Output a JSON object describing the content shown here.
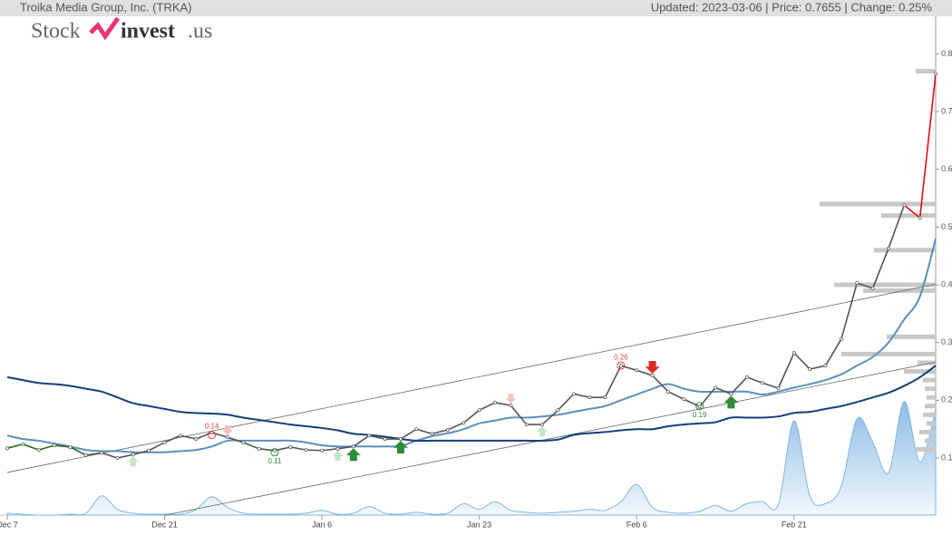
{
  "header": {
    "title": "Troika Media Group, Inc. (TRKA)",
    "status": "Updated: 2023-03-06 | Price: 0.7655 | Change: 0.25%"
  },
  "logo": {
    "part1": "Stock",
    "part2": "invest",
    "part3": ".us"
  },
  "chart_data": {
    "type": "line",
    "categories": [
      "Dec 7",
      null,
      null,
      null,
      null,
      null,
      null,
      null,
      null,
      null,
      "Dec 21",
      null,
      null,
      null,
      null,
      null,
      null,
      null,
      null,
      null,
      "Jan 6",
      null,
      null,
      null,
      null,
      null,
      null,
      null,
      null,
      null,
      "Jan 23",
      null,
      null,
      null,
      null,
      null,
      null,
      null,
      null,
      null,
      "Feb 6",
      null,
      null,
      null,
      null,
      null,
      null,
      null,
      null,
      null,
      "Feb 21",
      null,
      null,
      null,
      null,
      null,
      null,
      null,
      null,
      null
    ],
    "ylim": [
      0,
      0.865
    ],
    "yticks": [
      0.1,
      0.2,
      0.3,
      0.4,
      0.5,
      0.6,
      0.7,
      0.8
    ],
    "price": {
      "values": [
        0.117,
        0.124,
        0.114,
        0.122,
        0.119,
        0.105,
        0.109,
        0.1,
        0.106,
        0.113,
        0.127,
        0.139,
        0.133,
        0.144,
        0.136,
        0.127,
        0.116,
        0.113,
        0.119,
        0.114,
        0.113,
        0.116,
        0.12,
        0.139,
        0.133,
        0.133,
        0.15,
        0.142,
        0.149,
        0.161,
        0.183,
        0.196,
        0.191,
        0.158,
        0.158,
        0.183,
        0.211,
        0.205,
        0.205,
        0.26,
        0.252,
        0.243,
        0.215,
        0.202,
        0.189,
        0.222,
        0.211,
        0.24,
        0.23,
        0.221,
        0.282,
        0.254,
        0.26,
        0.306,
        0.403,
        0.394,
        0.463,
        0.538,
        0.516,
        0.7655
      ],
      "color_ranges": [
        {
          "from": 0,
          "to": 5,
          "color": "#2d6a1e"
        },
        {
          "from": 5,
          "to": 57,
          "color": "#555555"
        },
        {
          "from": 57,
          "to": 59,
          "color": "#e01010"
        }
      ]
    },
    "series": [
      {
        "color": "#5b8fc0",
        "values": [
          0.139,
          0.133,
          0.13,
          0.125,
          0.12,
          0.114,
          0.112,
          0.112,
          0.11,
          0.11,
          0.11,
          0.112,
          0.114,
          0.12,
          0.13,
          0.13,
          0.13,
          0.13,
          0.13,
          0.127,
          0.122,
          0.12,
          0.12,
          0.12,
          0.12,
          0.121,
          0.13,
          0.138,
          0.143,
          0.15,
          0.16,
          0.165,
          0.17,
          0.17,
          0.172,
          0.175,
          0.18,
          0.185,
          0.19,
          0.2,
          0.21,
          0.22,
          0.228,
          0.22,
          0.215,
          0.215,
          0.215,
          0.215,
          0.21,
          0.215,
          0.222,
          0.228,
          0.235,
          0.245,
          0.26,
          0.275,
          0.3,
          0.34,
          0.38,
          0.48
        ]
      },
      {
        "color": "#123f7a",
        "values": [
          0.24,
          0.235,
          0.23,
          0.228,
          0.225,
          0.22,
          0.215,
          0.205,
          0.195,
          0.19,
          0.185,
          0.18,
          0.178,
          0.177,
          0.175,
          0.17,
          0.166,
          0.162,
          0.158,
          0.155,
          0.152,
          0.148,
          0.142,
          0.14,
          0.137,
          0.133,
          0.13,
          0.13,
          0.13,
          0.13,
          0.13,
          0.13,
          0.13,
          0.13,
          0.13,
          0.132,
          0.14,
          0.143,
          0.145,
          0.148,
          0.15,
          0.15,
          0.155,
          0.158,
          0.16,
          0.162,
          0.17,
          0.17,
          0.17,
          0.172,
          0.178,
          0.18,
          0.185,
          0.19,
          0.197,
          0.205,
          0.213,
          0.225,
          0.24,
          0.26
        ]
      }
    ],
    "volume": {
      "color": "#7fb5e3",
      "y3lim": [
        0,
        130
      ],
      "values": [
        2,
        1,
        0,
        0,
        1,
        2,
        20,
        6,
        2,
        1,
        1,
        1,
        6,
        19,
        8,
        2,
        1,
        1,
        1,
        2,
        5,
        1,
        2,
        9,
        2,
        1,
        3,
        1,
        2,
        12,
        6,
        14,
        5,
        3,
        2,
        3,
        4,
        6,
        5,
        14,
        32,
        8,
        3,
        2,
        4,
        10,
        4,
        12,
        14,
        11,
        98,
        20,
        12,
        30,
        100,
        76,
        44,
        118,
        55,
        110
      ]
    },
    "trend_lines": [
      {
        "from": [
          0,
          0.075
        ],
        "to": [
          59,
          0.401
        ]
      },
      {
        "from": [
          10,
          0.001
        ],
        "to": [
          59,
          0.266
        ]
      }
    ],
    "signals": [
      {
        "index": 8,
        "kind": "buy",
        "strong": false
      },
      {
        "index": 21,
        "kind": "buy",
        "strong": false
      },
      {
        "index": 22,
        "kind": "buy",
        "strong": true
      },
      {
        "index": 25,
        "kind": "buy",
        "strong": true
      },
      {
        "index": 34,
        "kind": "buy",
        "strong": false
      },
      {
        "index": 46,
        "kind": "buy",
        "strong": true
      },
      {
        "index": 14,
        "kind": "sell",
        "strong": false
      },
      {
        "index": 32,
        "kind": "sell",
        "strong": false
      },
      {
        "index": 41,
        "kind": "sell",
        "strong": true
      }
    ],
    "pivots": [
      {
        "index": 13,
        "value": 0.14,
        "color": "#e04040"
      },
      {
        "index": 17,
        "value": 0.11,
        "color": "#2e8b2e"
      },
      {
        "index": 39,
        "value": 0.26,
        "color": "#e04040"
      },
      {
        "index": 44,
        "value": 0.19,
        "color": "#2e8b2e"
      }
    ],
    "volume_profile": {
      "color": "#c8c8c8",
      "levels": [
        [
          0.77,
          22
        ],
        [
          0.54,
          128
        ],
        [
          0.52,
          60
        ],
        [
          0.46,
          68
        ],
        [
          0.4,
          112
        ],
        [
          0.39,
          80
        ],
        [
          0.31,
          54
        ],
        [
          0.28,
          104
        ],
        [
          0.265,
          20
        ],
        [
          0.25,
          35
        ],
        [
          0.235,
          14
        ],
        [
          0.22,
          12
        ],
        [
          0.205,
          10
        ],
        [
          0.19,
          12
        ],
        [
          0.175,
          14
        ],
        [
          0.16,
          10
        ],
        [
          0.145,
          18
        ],
        [
          0.13,
          12
        ],
        [
          0.115,
          22
        ]
      ]
    }
  }
}
